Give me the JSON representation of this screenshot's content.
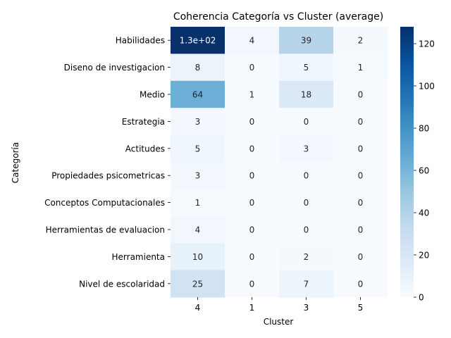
{
  "chart_data": {
    "type": "heatmap",
    "title": "Coherencia Categoría vs Cluster (average)",
    "xlabel": "Cluster",
    "ylabel": "Categoría",
    "x_categories": [
      "4",
      "1",
      "3",
      "5"
    ],
    "y_categories": [
      "Habilidades",
      "Diseno de investigacion",
      "Medio",
      "Estrategia",
      "Actitudes",
      "Propiedades psicometricas",
      "Conceptos Computacionales",
      "Herramientas de evaluacion",
      "Herramienta",
      "Nivel de escolaridad"
    ],
    "values": [
      [
        128,
        4,
        39,
        2
      ],
      [
        8,
        0,
        5,
        1
      ],
      [
        64,
        1,
        18,
        0
      ],
      [
        3,
        0,
        0,
        0
      ],
      [
        5,
        0,
        3,
        0
      ],
      [
        3,
        0,
        0,
        0
      ],
      [
        1,
        0,
        0,
        0
      ],
      [
        4,
        0,
        0,
        0
      ],
      [
        10,
        0,
        2,
        0
      ],
      [
        25,
        0,
        7,
        0
      ]
    ],
    "annotations": [
      [
        "1.3e+02",
        "4",
        "39",
        "2"
      ],
      [
        "8",
        "0",
        "5",
        "1"
      ],
      [
        "64",
        "1",
        "18",
        "0"
      ],
      [
        "3",
        "0",
        "0",
        "0"
      ],
      [
        "5",
        "0",
        "3",
        "0"
      ],
      [
        "3",
        "0",
        "0",
        "0"
      ],
      [
        "1",
        "0",
        "0",
        "0"
      ],
      [
        "4",
        "0",
        "0",
        "0"
      ],
      [
        "10",
        "0",
        "2",
        "0"
      ],
      [
        "25",
        "0",
        "7",
        "0"
      ]
    ],
    "colorbar": {
      "colormap": "Blues",
      "range": [
        0,
        128
      ],
      "ticks": [
        0,
        20,
        40,
        60,
        80,
        100,
        120
      ]
    },
    "grid": false,
    "legend": "none"
  }
}
